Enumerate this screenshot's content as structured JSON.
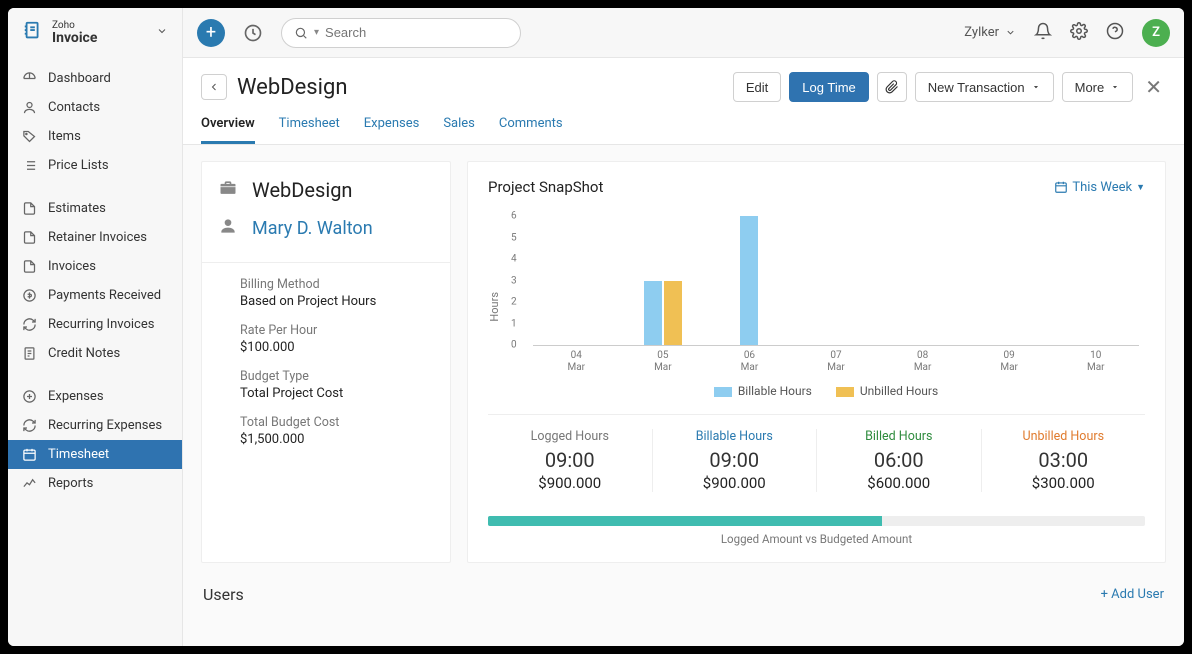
{
  "brand": {
    "top": "Zoho",
    "name": "Invoice"
  },
  "search": {
    "placeholder": "Search"
  },
  "org": {
    "name": "Zylker"
  },
  "avatar": {
    "letter": "Z"
  },
  "nav": {
    "items": [
      {
        "label": "Dashboard",
        "icon": "dashboard"
      },
      {
        "label": "Contacts",
        "icon": "user"
      },
      {
        "label": "Items",
        "icon": "tag"
      },
      {
        "label": "Price Lists",
        "icon": "list"
      }
    ],
    "sales": [
      {
        "label": "Estimates",
        "icon": "doc"
      },
      {
        "label": "Retainer Invoices",
        "icon": "doc"
      },
      {
        "label": "Invoices",
        "icon": "doc"
      },
      {
        "label": "Payments Received",
        "icon": "payment"
      },
      {
        "label": "Recurring Invoices",
        "icon": "recur"
      },
      {
        "label": "Credit Notes",
        "icon": "note"
      }
    ],
    "other": [
      {
        "label": "Expenses",
        "icon": "expense"
      },
      {
        "label": "Recurring Expenses",
        "icon": "recur"
      },
      {
        "label": "Timesheet",
        "icon": "timesheet",
        "active": true
      },
      {
        "label": "Reports",
        "icon": "reports"
      }
    ]
  },
  "header": {
    "title": "WebDesign",
    "edit": "Edit",
    "logTime": "Log Time",
    "newTransaction": "New Transaction",
    "more": "More"
  },
  "tabs": [
    "Overview",
    "Timesheet",
    "Expenses",
    "Sales",
    "Comments"
  ],
  "activeTabIndex": 0,
  "project": {
    "name": "WebDesign",
    "contact": "Mary D. Walton",
    "details": [
      {
        "k": "Billing Method",
        "v": "Based on Project Hours"
      },
      {
        "k": "Rate Per Hour",
        "v": "$100.000"
      },
      {
        "k": "Budget Type",
        "v": "Total Project Cost"
      },
      {
        "k": "Total Budget Cost",
        "v": "$1,500.000"
      }
    ]
  },
  "snapshot": {
    "title": "Project SnapShot",
    "period": "This Week",
    "yaxis_label": "Hours",
    "ylim": [
      0,
      6
    ],
    "ytick_step": 1,
    "categories": [
      "04",
      "05",
      "06",
      "07",
      "08",
      "09",
      "10"
    ],
    "month": "Mar",
    "series": [
      {
        "name": "Billable Hours",
        "color": "#8ecdf0",
        "values": [
          0,
          3,
          6,
          0,
          0,
          0,
          0
        ]
      },
      {
        "name": "Unbilled Hours",
        "color": "#f0c054",
        "values": [
          0,
          3,
          0,
          0,
          0,
          0,
          0
        ]
      }
    ],
    "background": "#ffffff",
    "axis_color": "#cccccc",
    "tick_fontsize": 10
  },
  "stats": [
    {
      "label": "Logged Hours",
      "labelColor": "#777",
      "hours": "09:00",
      "amount": "$900.000"
    },
    {
      "label": "Billable Hours",
      "labelColor": "#2a7ab0",
      "hours": "09:00",
      "amount": "$900.000"
    },
    {
      "label": "Billed Hours",
      "labelColor": "#2e8b3d",
      "hours": "06:00",
      "amount": "$600.000"
    },
    {
      "label": "Unbilled Hours",
      "labelColor": "#e07b2e",
      "hours": "03:00",
      "amount": "$300.000"
    }
  ],
  "progress": {
    "percent": 60,
    "fill_color": "#3fbcb0",
    "track_color": "#eeeeee",
    "label": "Logged Amount vs Budgeted Amount"
  },
  "users": {
    "title": "Users",
    "add": "+ Add User"
  }
}
